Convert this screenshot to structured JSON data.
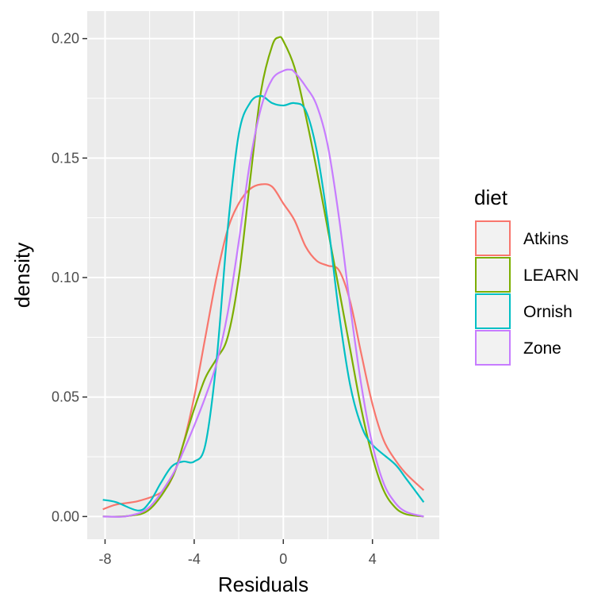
{
  "chart_data": {
    "type": "line",
    "xlabel": "Residuals",
    "ylabel": "density",
    "xlim": [
      -8.8,
      7.0
    ],
    "ylim": [
      -0.0095,
      0.2115
    ],
    "x_ticks": [
      -8,
      -4,
      0,
      4
    ],
    "x_tick_labels": [
      "-8",
      "-4",
      "0",
      "4"
    ],
    "y_ticks": [
      0.0,
      0.05,
      0.1,
      0.15,
      0.2
    ],
    "y_tick_labels": [
      "0.00",
      "0.05",
      "0.10",
      "0.15",
      "0.20"
    ],
    "grid": true,
    "legend": {
      "title": "diet",
      "position": "right"
    },
    "series": [
      {
        "name": "Atkins",
        "color": "#F8766D",
        "points": [
          [
            -8.1,
            0.003
          ],
          [
            -7.5,
            0.005
          ],
          [
            -6.5,
            0.0065
          ],
          [
            -5.5,
            0.01
          ],
          [
            -5,
            0.016
          ],
          [
            -4.5,
            0.03
          ],
          [
            -4,
            0.05
          ],
          [
            -3.5,
            0.075
          ],
          [
            -3,
            0.1
          ],
          [
            -2.5,
            0.12
          ],
          [
            -2,
            0.131
          ],
          [
            -1.5,
            0.137
          ],
          [
            -1,
            0.139
          ],
          [
            -0.5,
            0.138
          ],
          [
            0,
            0.131
          ],
          [
            0.5,
            0.124
          ],
          [
            1,
            0.113
          ],
          [
            1.5,
            0.107
          ],
          [
            2,
            0.105
          ],
          [
            2.5,
            0.103
          ],
          [
            3,
            0.09
          ],
          [
            3.5,
            0.068
          ],
          [
            4,
            0.047
          ],
          [
            4.5,
            0.032
          ],
          [
            5,
            0.024
          ],
          [
            5.5,
            0.018
          ],
          [
            6.3,
            0.011
          ]
        ]
      },
      {
        "name": "LEARN",
        "color": "#7CAE00",
        "points": [
          [
            -8.1,
            0.0
          ],
          [
            -7,
            0.0002
          ],
          [
            -6,
            0.003
          ],
          [
            -5,
            0.016
          ],
          [
            -4.5,
            0.03
          ],
          [
            -4,
            0.045
          ],
          [
            -3.5,
            0.058
          ],
          [
            -3,
            0.066
          ],
          [
            -2.5,
            0.075
          ],
          [
            -2,
            0.1
          ],
          [
            -1.5,
            0.14
          ],
          [
            -1,
            0.178
          ],
          [
            -0.5,
            0.197
          ],
          [
            -0.2,
            0.2005
          ],
          [
            0,
            0.199
          ],
          [
            0.5,
            0.188
          ],
          [
            1,
            0.168
          ],
          [
            1.5,
            0.145
          ],
          [
            2,
            0.12
          ],
          [
            2.5,
            0.095
          ],
          [
            3,
            0.07
          ],
          [
            3.5,
            0.045
          ],
          [
            4,
            0.025
          ],
          [
            4.5,
            0.011
          ],
          [
            5,
            0.004
          ],
          [
            5.5,
            0.001
          ],
          [
            6.3,
            0.0
          ]
        ]
      },
      {
        "name": "Ornish",
        "color": "#00BFC4",
        "points": [
          [
            -8.1,
            0.007
          ],
          [
            -7.5,
            0.006
          ],
          [
            -6.5,
            0.0025
          ],
          [
            -6,
            0.006
          ],
          [
            -5.5,
            0.014
          ],
          [
            -5,
            0.021
          ],
          [
            -4.5,
            0.023
          ],
          [
            -4,
            0.023
          ],
          [
            -3.5,
            0.03
          ],
          [
            -3,
            0.065
          ],
          [
            -2.5,
            0.12
          ],
          [
            -2,
            0.16
          ],
          [
            -1.5,
            0.173
          ],
          [
            -1,
            0.176
          ],
          [
            -0.5,
            0.173
          ],
          [
            0,
            0.172
          ],
          [
            0.5,
            0.173
          ],
          [
            1,
            0.17
          ],
          [
            1.5,
            0.153
          ],
          [
            2,
            0.123
          ],
          [
            2.5,
            0.085
          ],
          [
            3,
            0.055
          ],
          [
            3.5,
            0.038
          ],
          [
            4,
            0.03
          ],
          [
            5,
            0.022
          ],
          [
            5.5,
            0.016
          ],
          [
            6.3,
            0.006
          ]
        ]
      },
      {
        "name": "Zone",
        "color": "#C77CFF",
        "points": [
          [
            -8.1,
            0.0
          ],
          [
            -7,
            0.0002
          ],
          [
            -6,
            0.004
          ],
          [
            -5,
            0.017
          ],
          [
            -4.5,
            0.027
          ],
          [
            -4,
            0.038
          ],
          [
            -3.5,
            0.05
          ],
          [
            -3,
            0.064
          ],
          [
            -2.5,
            0.085
          ],
          [
            -2,
            0.115
          ],
          [
            -1.5,
            0.148
          ],
          [
            -1,
            0.171
          ],
          [
            -0.5,
            0.183
          ],
          [
            0,
            0.1865
          ],
          [
            0.3,
            0.187
          ],
          [
            0.5,
            0.186
          ],
          [
            1,
            0.18
          ],
          [
            1.5,
            0.172
          ],
          [
            2,
            0.155
          ],
          [
            2.5,
            0.125
          ],
          [
            3,
            0.088
          ],
          [
            3.5,
            0.055
          ],
          [
            4,
            0.03
          ],
          [
            4.5,
            0.014
          ],
          [
            5,
            0.006
          ],
          [
            5.5,
            0.002
          ],
          [
            6.3,
            0.0
          ]
        ]
      }
    ]
  }
}
